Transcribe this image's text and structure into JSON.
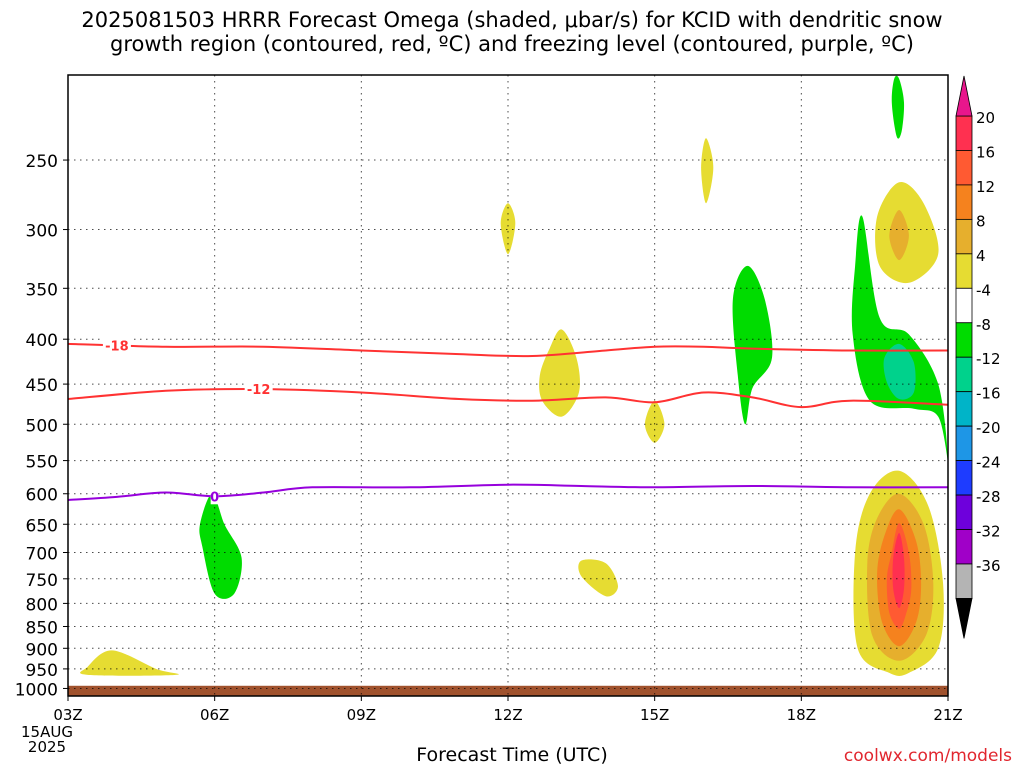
{
  "title_line1": "2025081503 HRRR Forecast Omega (shaded, μbar/s) for KCID with dendritic snow",
  "title_line2": "growth region (contoured, red, ºC) and freezing level (contoured, purple, ºC)",
  "credit": "coolwx.com/models",
  "chart_data": {
    "type": "heatmap",
    "title": "2025081503 HRRR Forecast Omega (shaded, μbar/s) for KCID with dendritic snow growth region (contoured, red, ºC) and freezing level (contoured, purple, ºC)",
    "xlabel": "Forecast Time (UTC)",
    "ylabel": "",
    "x_ticks": [
      {
        "hour": 3,
        "label": "03Z"
      },
      {
        "hour": 6,
        "label": "06Z"
      },
      {
        "hour": 9,
        "label": "09Z"
      },
      {
        "hour": 12,
        "label": "12Z"
      },
      {
        "hour": 15,
        "label": "15Z"
      },
      {
        "hour": 18,
        "label": "18Z"
      },
      {
        "hour": 21,
        "label": "21Z"
      }
    ],
    "x_date_label": [
      "15AUG",
      "2025"
    ],
    "xlim_hours": [
      3,
      21
    ],
    "y_axis": "pressure (hPa), inverted",
    "ylim_hPa": [
      1020,
      200
    ],
    "y_ticks": [
      250,
      300,
      350,
      400,
      450,
      500,
      550,
      600,
      650,
      700,
      750,
      800,
      850,
      900,
      950,
      1000
    ],
    "grid": true,
    "colorbar": {
      "labels": [
        "20",
        "16",
        "12",
        "8",
        "4",
        "-4",
        "-8",
        "-12",
        "-16",
        "-20",
        "-24",
        "-28",
        "-32",
        "-36"
      ],
      "bins": [
        {
          "from": 16,
          "to": 20,
          "color": "#ff3050"
        },
        {
          "from": 12,
          "to": 16,
          "color": "#ff5a32"
        },
        {
          "from": 8,
          "to": 12,
          "color": "#f5821e"
        },
        {
          "from": 4,
          "to": 8,
          "color": "#e6af2d"
        },
        {
          "from": 0,
          "to": 4,
          "color": "#e6dc32"
        },
        {
          "from": -4,
          "to": 0,
          "color": "#ffffff"
        },
        {
          "from": -8,
          "to": -4,
          "color": "#00dc00"
        },
        {
          "from": -12,
          "to": -8,
          "color": "#00d28c"
        },
        {
          "from": -16,
          "to": -12,
          "color": "#00b4c8"
        },
        {
          "from": -20,
          "to": -16,
          "color": "#1e96e6"
        },
        {
          "from": -24,
          "to": -20,
          "color": "#1e3cff"
        },
        {
          "from": -28,
          "to": -24,
          "color": "#6e00dc"
        },
        {
          "from": -32,
          "to": -28,
          "color": "#a000c8"
        },
        {
          "from": -36,
          "to": -32,
          "color": "#b4b4b4"
        }
      ],
      "top_triangle_color": "#e8168c",
      "bottom_triangle_color": "#000000"
    },
    "omega_regions": [
      {
        "name": "ascent",
        "color": "#00dc00",
        "points": [
          [
            19.25,
            290
          ],
          [
            19.6,
            378
          ],
          [
            20.2,
            395
          ],
          [
            20.8,
            450
          ],
          [
            21.0,
            550
          ],
          [
            20.8,
            490
          ],
          [
            20.3,
            480
          ],
          [
            19.4,
            470
          ],
          [
            19.05,
            395
          ],
          [
            19.1,
            330
          ]
        ]
      },
      {
        "name": "ascent",
        "color": "#00dc00",
        "points": [
          [
            20.0,
            202
          ],
          [
            20.1,
            215
          ],
          [
            20.05,
            232
          ],
          [
            19.95,
            235
          ],
          [
            19.85,
            215
          ],
          [
            19.9,
            202
          ]
        ]
      },
      {
        "name": "ascent",
        "color": "#00d28c",
        "points": [
          [
            20.0,
            405
          ],
          [
            20.3,
            425
          ],
          [
            20.3,
            460
          ],
          [
            20.0,
            468
          ],
          [
            19.75,
            448
          ],
          [
            19.7,
            420
          ]
        ]
      },
      {
        "name": "ascent",
        "color": "#00dc00",
        "points": [
          [
            16.9,
            330
          ],
          [
            17.25,
            360
          ],
          [
            17.4,
            420
          ],
          [
            17.0,
            455
          ],
          [
            16.85,
            500
          ],
          [
            16.7,
            440
          ],
          [
            16.6,
            360
          ]
        ]
      },
      {
        "name": "ascent",
        "color": "#00dc00",
        "points": [
          [
            5.95,
            600
          ],
          [
            6.2,
            650
          ],
          [
            6.55,
            710
          ],
          [
            6.4,
            780
          ],
          [
            6.0,
            780
          ],
          [
            5.75,
            690
          ],
          [
            5.7,
            650
          ]
        ]
      },
      {
        "name": "descent",
        "color": "#e6dc32",
        "points": [
          [
            20.0,
            265
          ],
          [
            20.5,
            280
          ],
          [
            20.8,
            320
          ],
          [
            20.2,
            345
          ],
          [
            19.6,
            330
          ],
          [
            19.55,
            290
          ]
        ]
      },
      {
        "name": "descent",
        "color": "#e6af2d",
        "points": [
          [
            20.0,
            285
          ],
          [
            20.2,
            305
          ],
          [
            20.0,
            325
          ],
          [
            19.8,
            305
          ]
        ]
      },
      {
        "name": "descent",
        "color": "#e6dc32",
        "points": [
          [
            20.0,
            565
          ],
          [
            20.6,
            620
          ],
          [
            20.9,
            760
          ],
          [
            20.8,
            900
          ],
          [
            20.2,
            960
          ],
          [
            19.8,
            960
          ],
          [
            19.15,
            900
          ],
          [
            19.1,
            700
          ],
          [
            19.4,
            600
          ]
        ]
      },
      {
        "name": "descent",
        "color": "#e6af2d",
        "points": [
          [
            20.0,
            600
          ],
          [
            20.5,
            650
          ],
          [
            20.7,
            760
          ],
          [
            20.55,
            870
          ],
          [
            20.0,
            930
          ],
          [
            19.45,
            870
          ],
          [
            19.35,
            720
          ],
          [
            19.55,
            640
          ]
        ]
      },
      {
        "name": "descent",
        "color": "#f5821e",
        "points": [
          [
            20.0,
            625
          ],
          [
            20.35,
            680
          ],
          [
            20.45,
            760
          ],
          [
            20.35,
            840
          ],
          [
            20.0,
            895
          ],
          [
            19.65,
            840
          ],
          [
            19.55,
            740
          ],
          [
            19.7,
            670
          ]
        ]
      },
      {
        "name": "descent",
        "color": "#ff5a32",
        "points": [
          [
            20.0,
            648
          ],
          [
            20.2,
            700
          ],
          [
            20.25,
            770
          ],
          [
            20.15,
            820
          ],
          [
            20.0,
            855
          ],
          [
            19.8,
            820
          ],
          [
            19.75,
            750
          ],
          [
            19.85,
            700
          ]
        ]
      },
      {
        "name": "descent",
        "color": "#ff3050",
        "points": [
          [
            20.0,
            665
          ],
          [
            20.1,
            710
          ],
          [
            20.1,
            770
          ],
          [
            20.0,
            810
          ],
          [
            19.88,
            770
          ],
          [
            19.88,
            710
          ]
        ]
      },
      {
        "name": "descent",
        "color": "#e6dc32",
        "points": [
          [
            16.05,
            236
          ],
          [
            16.2,
            255
          ],
          [
            16.05,
            280
          ],
          [
            15.95,
            255
          ]
        ]
      },
      {
        "name": "descent",
        "color": "#e6dc32",
        "points": [
          [
            12.0,
            280
          ],
          [
            12.15,
            295
          ],
          [
            12.0,
            320
          ],
          [
            11.85,
            295
          ]
        ]
      },
      {
        "name": "descent",
        "color": "#e6dc32",
        "points": [
          [
            13.1,
            390
          ],
          [
            13.4,
            420
          ],
          [
            13.45,
            460
          ],
          [
            13.1,
            490
          ],
          [
            12.7,
            470
          ],
          [
            12.65,
            440
          ],
          [
            12.85,
            410
          ]
        ]
      },
      {
        "name": "descent",
        "color": "#e6dc32",
        "points": [
          [
            15.0,
            470
          ],
          [
            15.2,
            500
          ],
          [
            15.0,
            525
          ],
          [
            14.8,
            500
          ]
        ]
      },
      {
        "name": "descent",
        "color": "#e6dc32",
        "points": [
          [
            13.5,
            715
          ],
          [
            14.0,
            720
          ],
          [
            14.25,
            765
          ],
          [
            14.0,
            785
          ],
          [
            13.5,
            745
          ]
        ]
      },
      {
        "name": "descent",
        "color": "#e6dc32",
        "points": [
          [
            3.4,
            945
          ],
          [
            3.9,
            905
          ],
          [
            4.8,
            950
          ],
          [
            5.2,
            965
          ],
          [
            3.4,
            965
          ]
        ]
      }
    ],
    "contours": [
      {
        "name": "dgz -18",
        "label": "-18",
        "color": "#ff3232",
        "label_at_hour": 4.0,
        "points": [
          [
            3,
            405
          ],
          [
            5,
            408
          ],
          [
            7,
            408
          ],
          [
            9,
            412
          ],
          [
            11,
            416
          ],
          [
            12.5,
            418
          ],
          [
            14,
            412
          ],
          [
            15,
            408
          ],
          [
            16,
            408
          ],
          [
            17,
            410
          ],
          [
            19,
            412
          ],
          [
            21,
            412
          ]
        ]
      },
      {
        "name": "dgz -12",
        "label": "-12",
        "color": "#ff3232",
        "label_at_hour": 6.9,
        "points": [
          [
            3,
            468
          ],
          [
            5,
            458
          ],
          [
            7,
            456
          ],
          [
            9,
            460
          ],
          [
            11,
            468
          ],
          [
            12.5,
            470
          ],
          [
            14,
            466
          ],
          [
            15,
            472
          ],
          [
            16,
            460
          ],
          [
            17,
            466
          ],
          [
            18,
            478
          ],
          [
            19,
            470
          ],
          [
            21,
            475
          ]
        ]
      },
      {
        "name": "freezing level",
        "label": "0",
        "color": "#9600dc",
        "label_at_hour": 6.0,
        "points": [
          [
            3,
            610
          ],
          [
            4,
            605
          ],
          [
            5,
            598
          ],
          [
            6,
            604
          ],
          [
            7,
            598
          ],
          [
            8,
            590
          ],
          [
            10,
            590
          ],
          [
            12,
            586
          ],
          [
            13.5,
            588
          ],
          [
            15,
            590
          ],
          [
            17,
            588
          ],
          [
            19,
            590
          ],
          [
            21,
            590
          ]
        ]
      }
    ],
    "terrain": {
      "color": "#a0522d",
      "surface_hPa": 993
    }
  }
}
